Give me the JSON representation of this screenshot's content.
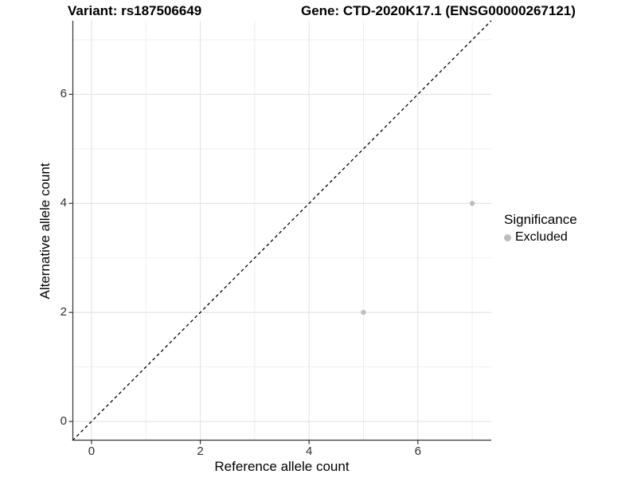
{
  "titles": {
    "left": "Variant: rs187506649",
    "right": "Gene: CTD-2020K17.1 (ENSG00000267121)"
  },
  "legend": {
    "title": "Significance",
    "items": [
      {
        "label": "Excluded",
        "color": "#bdbdbd"
      }
    ]
  },
  "colors": {
    "major_grid": "#e3e3e3",
    "minor_grid": "#ededed",
    "axis_line": "#333333",
    "tick_mark": "#333333",
    "reference_line": "#000000",
    "point": "#bdbdbd"
  },
  "chart_data": {
    "type": "scatter",
    "title_left": "Variant: rs187506649",
    "title_right": "Gene: CTD-2020K17.1 (ENSG00000267121)",
    "xlabel": "Reference allele count",
    "ylabel": "Alternative allele count",
    "xlim": [
      -0.35,
      7.35
    ],
    "ylim": [
      -0.35,
      7.35
    ],
    "x_ticks": [
      0,
      2,
      4,
      6
    ],
    "y_ticks": [
      0,
      2,
      4,
      6
    ],
    "x_minor_gridlines": [
      1,
      3,
      5,
      7
    ],
    "y_minor_gridlines": [
      1,
      3,
      5,
      7
    ],
    "grid": true,
    "legend_position": "right",
    "series": [
      {
        "name": "Excluded",
        "color": "#bdbdbd",
        "points": [
          {
            "x": 5,
            "y": 2
          },
          {
            "x": 7,
            "y": 4
          }
        ]
      }
    ],
    "reference_line": {
      "type": "identity",
      "style": "dashed",
      "from": [
        -0.35,
        -0.35
      ],
      "to": [
        7.35,
        7.35
      ]
    }
  }
}
